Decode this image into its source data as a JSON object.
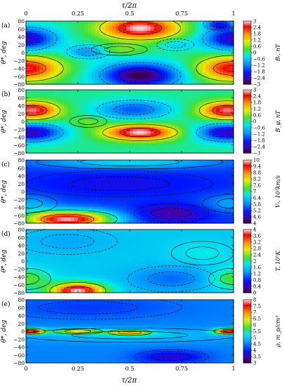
{
  "chart_data": {
    "type": "heatmap",
    "x_axis": {
      "label": "τ/2π",
      "range": [
        0,
        1
      ],
      "ticks": [
        0,
        0.25,
        0.5,
        0.75,
        1
      ],
      "tick_labels": [
        "0",
        "0.25",
        "0.5",
        "0.75",
        "1"
      ]
    },
    "panels": [
      {
        "letter": "(a)",
        "ylabel": "θ*, deg",
        "ylim": [
          -80,
          80
        ],
        "yticks": [
          80,
          60,
          40,
          20,
          0,
          -20,
          -40,
          -60,
          -80
        ],
        "colorbar_label": "Bᵣ, nT",
        "cmin": -3,
        "cmax": 3,
        "colorbar_ticks": [
          3,
          2.4,
          1.8,
          1.2,
          0.6,
          0,
          -0.6,
          -1.2,
          -1.8,
          -2.4,
          -3
        ],
        "colorbar_tick_labels": [
          "3",
          "2.4",
          "1.8",
          "1.2",
          "0.6",
          "0",
          "−0.6",
          "−1.2",
          "−1.8",
          "−2.4",
          "−3"
        ],
        "features": [
          {
            "x": 0.0,
            "y": 35,
            "sx": 0.1,
            "sy": 20,
            "v": -2.4
          },
          {
            "x": 1.0,
            "y": 35,
            "sx": 0.1,
            "sy": 20,
            "v": -2.4
          },
          {
            "x": 0.0,
            "y": -40,
            "sx": 0.12,
            "sy": 22,
            "v": 2.6
          },
          {
            "x": 1.0,
            "y": -40,
            "sx": 0.12,
            "sy": 22,
            "v": 2.6
          },
          {
            "x": 0.55,
            "y": 62,
            "sx": 0.13,
            "sy": 20,
            "v": 3.0
          },
          {
            "x": 0.55,
            "y": -58,
            "sx": 0.13,
            "sy": 22,
            "v": -3.0
          },
          {
            "x": 0.3,
            "y": 2,
            "sx": 0.07,
            "sy": 12,
            "v": -1.2
          },
          {
            "x": 0.45,
            "y": 8,
            "sx": 0.09,
            "sy": 10,
            "v": 0.6
          },
          {
            "x": 0.93,
            "y": 72,
            "sx": 0.05,
            "sy": 10,
            "v": -1.8
          },
          {
            "x": 0.72,
            "y": 20,
            "sx": 0.06,
            "sy": 10,
            "v": -0.6
          }
        ]
      },
      {
        "letter": "(b)",
        "ylabel": "θ*, deg",
        "ylim": [
          -80,
          80
        ],
        "yticks": [
          80,
          60,
          40,
          20,
          0,
          -20,
          -40,
          -60,
          -80
        ],
        "colorbar_label": "B_φ, nT",
        "cmin": -3,
        "cmax": 3,
        "colorbar_ticks": [
          3,
          2.4,
          1.8,
          1.2,
          0.6,
          0,
          -0.6,
          -1.2,
          -1.8,
          -2.4,
          -3
        ],
        "colorbar_tick_labels": [
          "3",
          "2.4",
          "1.8",
          "1.2",
          "0.6",
          "0",
          "−0.6",
          "−1.2",
          "−1.8",
          "−2.4",
          "−3"
        ],
        "features": [
          {
            "x": 0.03,
            "y": 28,
            "sx": 0.09,
            "sy": 16,
            "v": 2.8
          },
          {
            "x": 0.97,
            "y": 28,
            "sx": 0.09,
            "sy": 16,
            "v": 2.8
          },
          {
            "x": 0.03,
            "y": -28,
            "sx": 0.1,
            "sy": 16,
            "v": -2.4
          },
          {
            "x": 0.97,
            "y": -28,
            "sx": 0.1,
            "sy": 16,
            "v": -2.4
          },
          {
            "x": 0.52,
            "y": 30,
            "sx": 0.12,
            "sy": 16,
            "v": -1.5
          },
          {
            "x": 0.55,
            "y": -28,
            "sx": 0.12,
            "sy": 14,
            "v": 3.0
          },
          {
            "x": 0.3,
            "y": 0,
            "sx": 0.06,
            "sy": 10,
            "v": 0.5
          }
        ]
      },
      {
        "letter": "(c)",
        "ylabel": "θ*, deg",
        "ylim": [
          -80,
          80
        ],
        "yticks": [
          80,
          60,
          40,
          20,
          0,
          -20,
          -40,
          -60,
          -80
        ],
        "colorbar_label": "Vᵣ, 10²km/s",
        "cmin": 4,
        "cmax": 10,
        "colorbar_ticks": [
          10,
          9.4,
          8.8,
          8.2,
          7.6,
          7,
          6.4,
          5.8,
          5.2,
          4.6,
          4
        ],
        "colorbar_tick_labels": [
          "10",
          "9.4",
          "8.8",
          "8.2",
          "7.6",
          "7",
          "6.4",
          "5.8",
          "5.2",
          "4.6",
          "4"
        ],
        "base": 5.3,
        "features": [
          {
            "x": 0.2,
            "y": -70,
            "sx": 0.16,
            "sy": 16,
            "v": 4.6
          },
          {
            "x": 0.0,
            "y": -30,
            "sx": 0.1,
            "sy": 16,
            "v": 0.8
          },
          {
            "x": 1.0,
            "y": -30,
            "sx": 0.1,
            "sy": 16,
            "v": 0.8
          },
          {
            "x": 0.5,
            "y": 75,
            "sx": 0.3,
            "sy": 12,
            "v": 1.3
          },
          {
            "x": 0.45,
            "y": 20,
            "sx": 0.3,
            "sy": 22,
            "v": -0.4
          },
          {
            "x": 0.7,
            "y": -55,
            "sx": 0.12,
            "sy": 16,
            "v": -0.9
          }
        ]
      },
      {
        "letter": "(d)",
        "ylabel": "θ*, deg",
        "ylim": [
          -80,
          80
        ],
        "yticks": [
          80,
          60,
          40,
          20,
          0,
          -20,
          -40,
          -60,
          -80
        ],
        "colorbar_label": "T, 10⁵K",
        "cmin": 0,
        "cmax": 4,
        "colorbar_ticks": [
          4,
          3.6,
          3.2,
          2.8,
          2.4,
          2,
          1.6,
          1.2,
          0.8,
          0.4,
          0
        ],
        "colorbar_tick_labels": [
          "4",
          "3.6",
          "3.2",
          "2.8",
          "2.4",
          "2",
          "1.6",
          "1.2",
          "0.8",
          "0.4",
          "0"
        ],
        "base": 1.6,
        "features": [
          {
            "x": 0.25,
            "y": -75,
            "sx": 0.09,
            "sy": 14,
            "v": 2.4
          },
          {
            "x": 0.0,
            "y": -45,
            "sx": 0.08,
            "sy": 18,
            "v": 0.7
          },
          {
            "x": 1.0,
            "y": -45,
            "sx": 0.08,
            "sy": 18,
            "v": 0.7
          },
          {
            "x": 0.7,
            "y": -45,
            "sx": 0.14,
            "sy": 22,
            "v": -0.5
          },
          {
            "x": 0.2,
            "y": 50,
            "sx": 0.16,
            "sy": 22,
            "v": -0.2
          },
          {
            "x": 0.85,
            "y": 20,
            "sx": 0.1,
            "sy": 20,
            "v": 0.2
          }
        ]
      },
      {
        "letter": "(e)",
        "ylabel": "θ*, deg",
        "ylim": [
          -80,
          80
        ],
        "yticks": [
          80,
          60,
          40,
          20,
          0,
          -20,
          -40,
          -60,
          -80
        ],
        "colorbar_label": "ρ, m_p/cm³",
        "cmin": 3,
        "cmax": 8,
        "colorbar_ticks": [
          8,
          7.5,
          7,
          6.5,
          6,
          5.5,
          5,
          4.5,
          4,
          3.5,
          3
        ],
        "colorbar_tick_labels": [
          "8",
          "7.5",
          "7",
          "6.5",
          "6",
          "5.5",
          "5",
          "4.5",
          "4",
          "3.5",
          "3"
        ],
        "base": 4.5,
        "features": [
          {
            "x": 0.02,
            "y": 0,
            "sx": 0.05,
            "sy": 5,
            "v": 3.4
          },
          {
            "x": 0.98,
            "y": 0,
            "sx": 0.05,
            "sy": 5,
            "v": 3.4
          },
          {
            "x": 0.25,
            "y": 0,
            "sx": 0.08,
            "sy": 5,
            "v": 1.8
          },
          {
            "x": 0.5,
            "y": -3,
            "sx": 0.07,
            "sy": 5,
            "v": 2.0
          },
          {
            "x": 0.5,
            "y": -10,
            "sx": 0.35,
            "sy": 12,
            "v": 0.5
          },
          {
            "x": 0.3,
            "y": 60,
            "sx": 0.3,
            "sy": 20,
            "v": -0.4
          },
          {
            "x": 0.7,
            "y": -65,
            "sx": 0.12,
            "sy": 12,
            "v": -0.9
          }
        ]
      }
    ]
  }
}
